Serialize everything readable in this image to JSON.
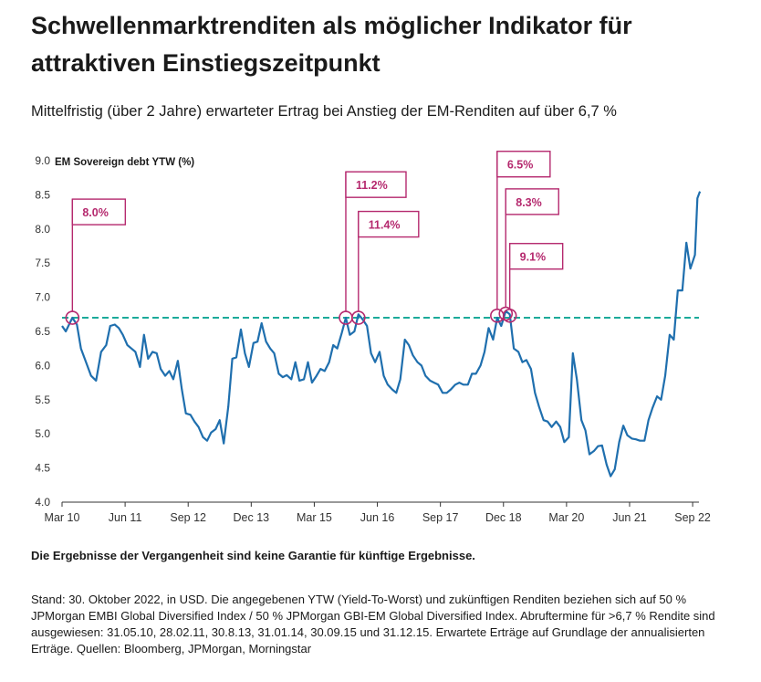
{
  "title": "Schwellenmarktrenditen als möglicher Indikator für attraktiven Einstiegszeitpunkt",
  "subtitle": "Mittelfristig (über 2 Jahre) erwarteter Ertrag bei Anstieg der EM-Renditen auf über 6,7 %",
  "disclaimer": "Die Ergebnisse der Vergangenheit sind keine Garantie für künftige Ergebnisse.",
  "footnote": "Stand: 30. Oktober 2022, in USD. Die angegebenen YTW (Yield-To-Worst) und zukünftigen Renditen beziehen sich auf 50 % JPMorgan EMBI Global Diversified Index / 50 % JPMorgan GBI-EM Global Diversified Index. Abrufter­mine für >6,7 % Rendite sind ausgewiesen: 31.05.10, 28.02.11, 30.8.13, 31.01.14, 30.09.15 und 31.12.15. Erwartete Erträge auf Grundlage der annualisierten Erträge. Quellen: Bloomberg, JPMorgan, Morningstar",
  "colors": {
    "line": "#1f6fae",
    "threshold": "#1aaa9a",
    "annotation": "#b5296e",
    "axis": "#333333"
  },
  "chart_data": {
    "type": "line",
    "title": "",
    "ylabel": "EM Sovereign debt YTW (%)",
    "xlabel": "",
    "ylim": [
      4.0,
      9.0
    ],
    "yticks": [
      "4.0",
      "4.5",
      "5.0",
      "5.5",
      "6.0",
      "6.5",
      "7.0",
      "7.5",
      "8.0",
      "8.5",
      "9.0"
    ],
    "ytick_values": [
      4.0,
      4.5,
      5.0,
      5.5,
      6.0,
      6.5,
      7.0,
      7.5,
      8.0,
      8.5,
      9.0
    ],
    "xlim": [
      2010.125,
      2022.75
    ],
    "xtick_labels": [
      "Mar 10",
      "Jun 11",
      "Sep 12",
      "Dec 13",
      "Mar 15",
      "Jun 16",
      "Sep 17",
      "Dec 18",
      "Mar 20",
      "Jun 21",
      "Sep 22"
    ],
    "xtick_values": [
      2010.125,
      2011.375,
      2012.625,
      2013.875,
      2015.125,
      2016.375,
      2017.625,
      2018.875,
      2020.125,
      2021.375,
      2022.625
    ],
    "threshold": 6.7,
    "series": [
      {
        "name": "EM Sovereign debt YTW (%)",
        "points": [
          [
            2010.125,
            6.58
          ],
          [
            2010.2,
            6.5
          ],
          [
            2010.33,
            6.7
          ],
          [
            2010.42,
            6.6
          ],
          [
            2010.5,
            6.25
          ],
          [
            2010.6,
            6.05
          ],
          [
            2010.7,
            5.85
          ],
          [
            2010.8,
            5.78
          ],
          [
            2010.9,
            6.2
          ],
          [
            2011.0,
            6.3
          ],
          [
            2011.08,
            6.58
          ],
          [
            2011.17,
            6.6
          ],
          [
            2011.25,
            6.55
          ],
          [
            2011.33,
            6.45
          ],
          [
            2011.42,
            6.3
          ],
          [
            2011.5,
            6.25
          ],
          [
            2011.58,
            6.2
          ],
          [
            2011.67,
            5.98
          ],
          [
            2011.75,
            6.45
          ],
          [
            2011.83,
            6.1
          ],
          [
            2011.92,
            6.2
          ],
          [
            2012.0,
            6.18
          ],
          [
            2012.08,
            5.95
          ],
          [
            2012.17,
            5.85
          ],
          [
            2012.25,
            5.92
          ],
          [
            2012.33,
            5.8
          ],
          [
            2012.42,
            6.07
          ],
          [
            2012.5,
            5.65
          ],
          [
            2012.58,
            5.3
          ],
          [
            2012.67,
            5.28
          ],
          [
            2012.75,
            5.18
          ],
          [
            2012.83,
            5.1
          ],
          [
            2012.92,
            4.95
          ],
          [
            2013.0,
            4.9
          ],
          [
            2013.08,
            5.02
          ],
          [
            2013.17,
            5.07
          ],
          [
            2013.25,
            5.2
          ],
          [
            2013.33,
            4.86
          ],
          [
            2013.42,
            5.4
          ],
          [
            2013.5,
            6.1
          ],
          [
            2013.58,
            6.12
          ],
          [
            2013.67,
            6.53
          ],
          [
            2013.75,
            6.18
          ],
          [
            2013.83,
            5.98
          ],
          [
            2013.92,
            6.33
          ],
          [
            2014.0,
            6.35
          ],
          [
            2014.08,
            6.62
          ],
          [
            2014.17,
            6.35
          ],
          [
            2014.25,
            6.25
          ],
          [
            2014.33,
            6.18
          ],
          [
            2014.42,
            5.88
          ],
          [
            2014.5,
            5.83
          ],
          [
            2014.58,
            5.86
          ],
          [
            2014.67,
            5.8
          ],
          [
            2014.75,
            6.05
          ],
          [
            2014.83,
            5.78
          ],
          [
            2014.92,
            5.8
          ],
          [
            2015.0,
            6.05
          ],
          [
            2015.08,
            5.75
          ],
          [
            2015.17,
            5.85
          ],
          [
            2015.25,
            5.95
          ],
          [
            2015.33,
            5.92
          ],
          [
            2015.42,
            6.05
          ],
          [
            2015.5,
            6.3
          ],
          [
            2015.58,
            6.25
          ],
          [
            2015.67,
            6.48
          ],
          [
            2015.75,
            6.7
          ],
          [
            2015.83,
            6.45
          ],
          [
            2015.92,
            6.5
          ],
          [
            2016.0,
            6.75
          ],
          [
            2016.08,
            6.68
          ],
          [
            2016.17,
            6.58
          ],
          [
            2016.25,
            6.18
          ],
          [
            2016.33,
            6.05
          ],
          [
            2016.42,
            6.2
          ],
          [
            2016.5,
            5.85
          ],
          [
            2016.58,
            5.72
          ],
          [
            2016.67,
            5.65
          ],
          [
            2016.75,
            5.6
          ],
          [
            2016.83,
            5.8
          ],
          [
            2016.92,
            6.38
          ],
          [
            2017.0,
            6.3
          ],
          [
            2017.08,
            6.15
          ],
          [
            2017.17,
            6.05
          ],
          [
            2017.25,
            6.0
          ],
          [
            2017.33,
            5.85
          ],
          [
            2017.42,
            5.78
          ],
          [
            2017.5,
            5.75
          ],
          [
            2017.58,
            5.72
          ],
          [
            2017.67,
            5.6
          ],
          [
            2017.75,
            5.6
          ],
          [
            2017.83,
            5.65
          ],
          [
            2017.92,
            5.72
          ],
          [
            2018.0,
            5.75
          ],
          [
            2018.08,
            5.72
          ],
          [
            2018.17,
            5.72
          ],
          [
            2018.25,
            5.88
          ],
          [
            2018.33,
            5.88
          ],
          [
            2018.42,
            6.0
          ],
          [
            2018.5,
            6.2
          ],
          [
            2018.58,
            6.55
          ],
          [
            2018.67,
            6.38
          ],
          [
            2018.75,
            6.7
          ],
          [
            2018.83,
            6.58
          ],
          [
            2018.92,
            6.8
          ],
          [
            2019.0,
            6.75
          ],
          [
            2019.08,
            6.25
          ],
          [
            2019.17,
            6.2
          ],
          [
            2019.25,
            6.05
          ],
          [
            2019.33,
            6.08
          ],
          [
            2019.42,
            5.95
          ],
          [
            2019.5,
            5.6
          ],
          [
            2019.58,
            5.4
          ],
          [
            2019.67,
            5.2
          ],
          [
            2019.75,
            5.18
          ],
          [
            2019.83,
            5.1
          ],
          [
            2019.92,
            5.18
          ],
          [
            2020.0,
            5.1
          ],
          [
            2020.08,
            4.88
          ],
          [
            2020.17,
            4.95
          ],
          [
            2020.25,
            6.18
          ],
          [
            2020.33,
            5.8
          ],
          [
            2020.42,
            5.2
          ],
          [
            2020.5,
            5.05
          ],
          [
            2020.58,
            4.7
          ],
          [
            2020.67,
            4.75
          ],
          [
            2020.75,
            4.82
          ],
          [
            2020.83,
            4.83
          ],
          [
            2020.92,
            4.55
          ],
          [
            2021.0,
            4.38
          ],
          [
            2021.08,
            4.48
          ],
          [
            2021.17,
            4.88
          ],
          [
            2021.25,
            5.12
          ],
          [
            2021.33,
            4.98
          ],
          [
            2021.42,
            4.93
          ],
          [
            2021.5,
            4.92
          ],
          [
            2021.58,
            4.9
          ],
          [
            2021.67,
            4.9
          ],
          [
            2021.75,
            5.2
          ],
          [
            2021.83,
            5.38
          ],
          [
            2021.92,
            5.55
          ],
          [
            2022.0,
            5.5
          ],
          [
            2022.08,
            5.85
          ],
          [
            2022.17,
            6.45
          ],
          [
            2022.25,
            6.38
          ],
          [
            2022.33,
            7.1
          ],
          [
            2022.42,
            7.1
          ],
          [
            2022.5,
            7.8
          ],
          [
            2022.58,
            7.42
          ],
          [
            2022.67,
            7.62
          ],
          [
            2022.72,
            8.45
          ],
          [
            2022.77,
            8.55
          ]
        ]
      }
    ],
    "annotations": [
      {
        "label": "8.0%",
        "x": 2010.33,
        "y": 6.7,
        "box_y": 8.25
      },
      {
        "label": "11.2%",
        "x": 2015.75,
        "y": 6.7,
        "box_y": 8.65
      },
      {
        "label": "11.4%",
        "x": 2016.0,
        "y": 6.7,
        "box_y": 8.07
      },
      {
        "label": "6.5%",
        "x": 2018.75,
        "y": 6.73,
        "box_y": 8.95
      },
      {
        "label": "8.3%",
        "x": 2018.92,
        "y": 6.76,
        "box_y": 8.4
      },
      {
        "label": "9.1%",
        "x": 2019.0,
        "y": 6.73,
        "box_y": 7.6
      }
    ]
  }
}
